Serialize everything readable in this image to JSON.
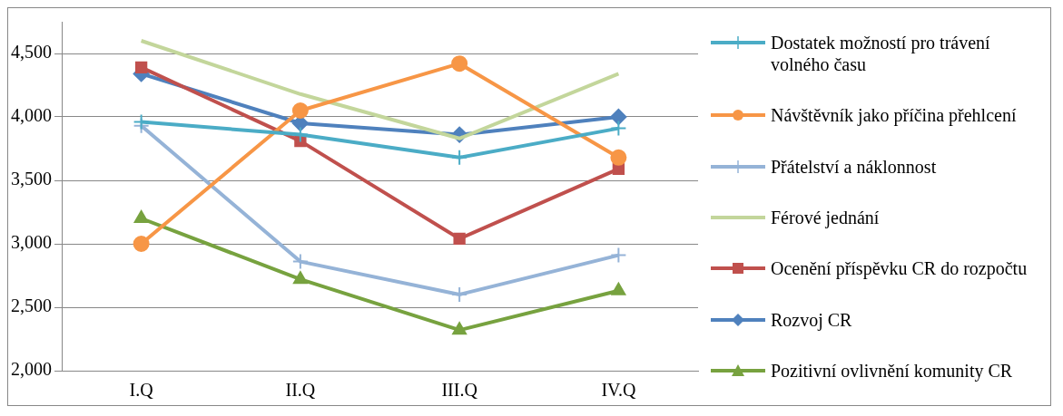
{
  "chart_data": {
    "type": "line",
    "categories": [
      "I.Q",
      "II.Q",
      "III.Q",
      "IV.Q"
    ],
    "series": [
      {
        "name": "Dostatek možností pro trávení volného času",
        "color": "#4bacc6",
        "marker": "cross",
        "values": [
          3960,
          3860,
          3680,
          3910
        ]
      },
      {
        "name": "Návštěvník jako příčina přehlcení",
        "color": "#f79646",
        "marker": "circle",
        "values": [
          3000,
          4050,
          4420,
          3680
        ]
      },
      {
        "name": "Přátelství a náklonnost",
        "color": "#95b3d7",
        "marker": "cross",
        "values": [
          3930,
          2860,
          2600,
          2910
        ]
      },
      {
        "name": "Férové jednání",
        "color": "#c3d69b",
        "marker": "none",
        "values": [
          4600,
          4180,
          3830,
          4340
        ]
      },
      {
        "name": "Ocenění příspěvku CR do rozpočtu",
        "color": "#c0504d",
        "marker": "square",
        "values": [
          4390,
          3810,
          3040,
          3590
        ]
      },
      {
        "name": "Rozvoj CR",
        "color": "#4f81bd",
        "marker": "diamond",
        "values": [
          4340,
          3950,
          3860,
          4000
        ]
      },
      {
        "name": "Pozitivní ovlivnění komunity CR",
        "color": "#77a23f",
        "marker": "triangle",
        "values": [
          3200,
          2720,
          2320,
          2630
        ]
      }
    ],
    "ylim": [
      2000,
      4750
    ],
    "yticks": [
      {
        "value": 2000,
        "label": "2,000"
      },
      {
        "value": 2500,
        "label": "2,500"
      },
      {
        "value": 3000,
        "label": "3,000"
      },
      {
        "value": 3500,
        "label": "3,500"
      },
      {
        "value": 4000,
        "label": "4,000"
      },
      {
        "value": 4500,
        "label": "4,500"
      }
    ],
    "grid": "y",
    "legend": "right",
    "line_style": "solid"
  }
}
